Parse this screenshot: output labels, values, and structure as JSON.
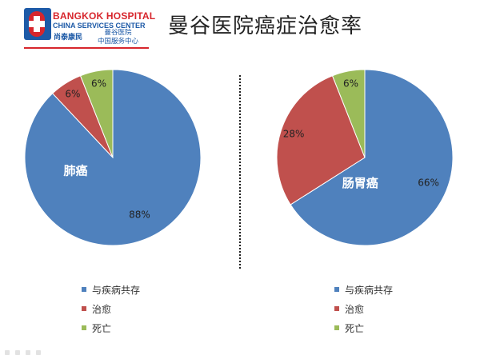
{
  "header": {
    "logo_en_line1": "BANGKOK HOSPITAL",
    "logo_en_line2": "CHINA SERVICES CENTER",
    "logo_cn_brand": "尚泰康民",
    "logo_cn_line1": "曼谷医院",
    "logo_cn_line2": "中国服务中心",
    "title": "曼谷医院癌症治愈率"
  },
  "colors": {
    "coexist": "#4F81BD",
    "cured": "#C0504D",
    "death": "#9BBB59",
    "brand_red": "#D7262D",
    "brand_blue": "#1D5AA7"
  },
  "chart_data": [
    {
      "type": "pie",
      "title": "肺癌",
      "categories": [
        "与疾病共存",
        "治愈",
        "死亡"
      ],
      "values": [
        88,
        6,
        6
      ],
      "labels": [
        "88%",
        "6%",
        "6%"
      ],
      "legend": [
        "与疾病共存",
        "治愈",
        "死亡"
      ],
      "legend_position": "bottom"
    },
    {
      "type": "pie",
      "title": "肠胃癌",
      "categories": [
        "与疾病共存",
        "治愈",
        "死亡"
      ],
      "values": [
        66,
        28,
        6
      ],
      "labels": [
        "66%",
        "28%",
        "6%"
      ],
      "legend": [
        "与疾病共存",
        "治愈",
        "死亡"
      ],
      "legend_position": "bottom"
    }
  ]
}
